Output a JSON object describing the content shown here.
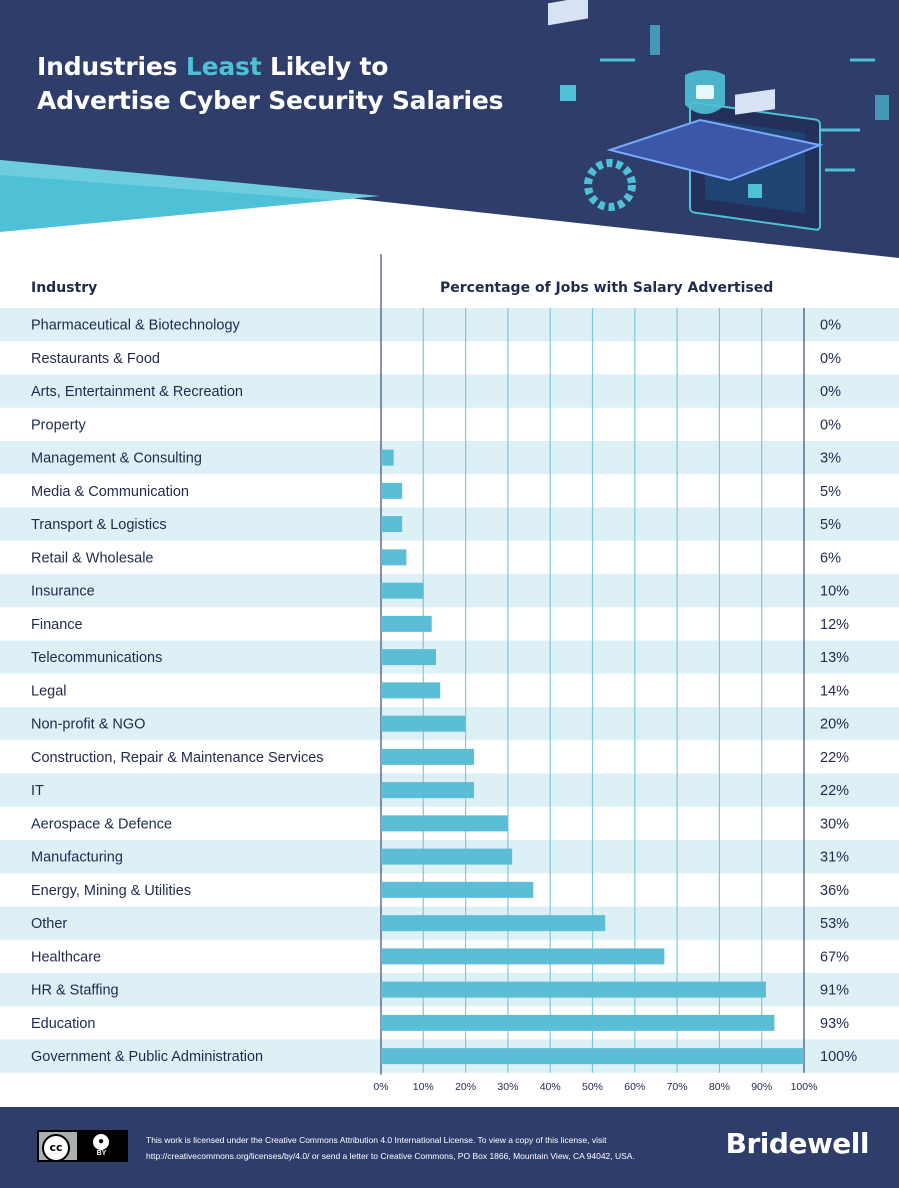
{
  "title": {
    "line1_part1": "Industries ",
    "line1_highlight": "Least",
    "line1_part2": " Likely to",
    "line2": "Advertise Cyber Security Salaries"
  },
  "colors": {
    "navy": "#2f3d6b",
    "accent": "#4fc1d6",
    "bar": "#5bbed6",
    "row_band": "#dcf0f6",
    "text": "#1f2a4d"
  },
  "chart_data": {
    "type": "bar",
    "orientation": "horizontal",
    "category_header": "Industry",
    "value_header": "Percentage of Jobs with Salary Advertised",
    "categories": [
      "Pharmaceutical & Biotechnology",
      "Restaurants & Food",
      "Arts, Entertainment & Recreation",
      "Property",
      "Management & Consulting",
      "Media & Communication",
      "Transport & Logistics",
      "Retail & Wholesale",
      "Insurance",
      "Finance",
      "Telecommunications",
      "Legal",
      "Non-profit & NGO",
      "Construction, Repair & Maintenance Services",
      "IT",
      "Aerospace & Defence",
      "Manufacturing",
      "Energy, Mining & Utilities",
      "Other",
      "Healthcare",
      "HR & Staffing",
      "Education",
      "Government & Public Administration"
    ],
    "values": [
      0,
      0,
      0,
      0,
      3,
      5,
      5,
      6,
      10,
      12,
      13,
      14,
      20,
      22,
      22,
      30,
      31,
      36,
      53,
      67,
      91,
      93,
      100
    ],
    "value_labels": [
      "0%",
      "0%",
      "0%",
      "0%",
      "3%",
      "5%",
      "5%",
      "6%",
      "10%",
      "12%",
      "13%",
      "14%",
      "20%",
      "22%",
      "22%",
      "30%",
      "31%",
      "36%",
      "53%",
      "67%",
      "91%",
      "93%",
      "100%"
    ],
    "xlim": [
      0,
      100
    ],
    "x_ticks": [
      "0%",
      "10%",
      "20%",
      "30%",
      "40%",
      "50%",
      "60%",
      "70%",
      "80%",
      "90%",
      "100%"
    ],
    "grid": true
  },
  "footer": {
    "cc_label": "cc",
    "by_label": "BY",
    "license_line1": "This work is licensed under the Creative Commons Attribution 4.0 International License. To view a copy of this license, visit",
    "license_line2": "http://creativecommons.org/licenses/by/4.0/ or send a letter to Creative Commons, PO Box 1866, Mountain View, CA 94042, USA.",
    "brand": "Bridewell"
  }
}
